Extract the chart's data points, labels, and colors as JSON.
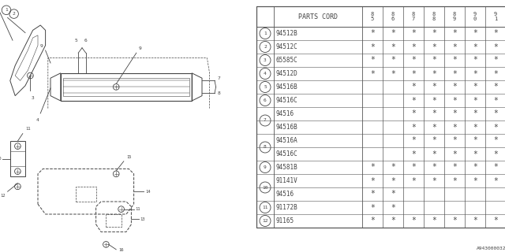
{
  "diagram_note": "A943000032",
  "rows": [
    {
      "num": "1",
      "parts": [
        "94512B"
      ],
      "marks_list": [
        [
          1,
          1,
          1,
          1,
          1,
          1,
          1
        ]
      ]
    },
    {
      "num": "2",
      "parts": [
        "94512C"
      ],
      "marks_list": [
        [
          1,
          1,
          1,
          1,
          1,
          1,
          1
        ]
      ]
    },
    {
      "num": "3",
      "parts": [
        "65585C"
      ],
      "marks_list": [
        [
          1,
          1,
          1,
          1,
          1,
          1,
          1
        ]
      ]
    },
    {
      "num": "4",
      "parts": [
        "94512D"
      ],
      "marks_list": [
        [
          1,
          1,
          1,
          1,
          1,
          1,
          1
        ]
      ]
    },
    {
      "num": "5",
      "parts": [
        "94516B"
      ],
      "marks_list": [
        [
          0,
          0,
          1,
          1,
          1,
          1,
          1
        ]
      ]
    },
    {
      "num": "6",
      "parts": [
        "94516C"
      ],
      "marks_list": [
        [
          0,
          0,
          1,
          1,
          1,
          1,
          1
        ]
      ]
    },
    {
      "num": "7",
      "parts": [
        "94516",
        "94516B"
      ],
      "marks_list": [
        [
          0,
          0,
          1,
          1,
          1,
          1,
          1
        ],
        [
          0,
          0,
          1,
          1,
          1,
          1,
          1
        ]
      ]
    },
    {
      "num": "8",
      "parts": [
        "94516A",
        "94516C"
      ],
      "marks_list": [
        [
          0,
          0,
          1,
          1,
          1,
          1,
          1
        ],
        [
          0,
          0,
          1,
          1,
          1,
          1,
          1
        ]
      ]
    },
    {
      "num": "9",
      "parts": [
        "94581B"
      ],
      "marks_list": [
        [
          1,
          1,
          1,
          1,
          1,
          1,
          1
        ]
      ]
    },
    {
      "num": "10",
      "parts": [
        "91141V",
        "94516"
      ],
      "marks_list": [
        [
          1,
          1,
          1,
          1,
          1,
          1,
          1
        ],
        [
          1,
          1,
          0,
          0,
          0,
          0,
          0
        ]
      ]
    },
    {
      "num": "11",
      "parts": [
        "91172B"
      ],
      "marks_list": [
        [
          1,
          1,
          0,
          0,
          0,
          0,
          0
        ]
      ]
    },
    {
      "num": "12",
      "parts": [
        "91165"
      ],
      "marks_list": [
        [
          1,
          1,
          1,
          1,
          1,
          1,
          1
        ]
      ]
    }
  ],
  "year_labels": [
    "8\n5",
    "8\n6",
    "8\n7",
    "8\n8",
    "8\n9",
    "9\n0",
    "9\n1"
  ],
  "bg_color": "#ffffff",
  "line_color": "#555555",
  "text_color": "#444444"
}
